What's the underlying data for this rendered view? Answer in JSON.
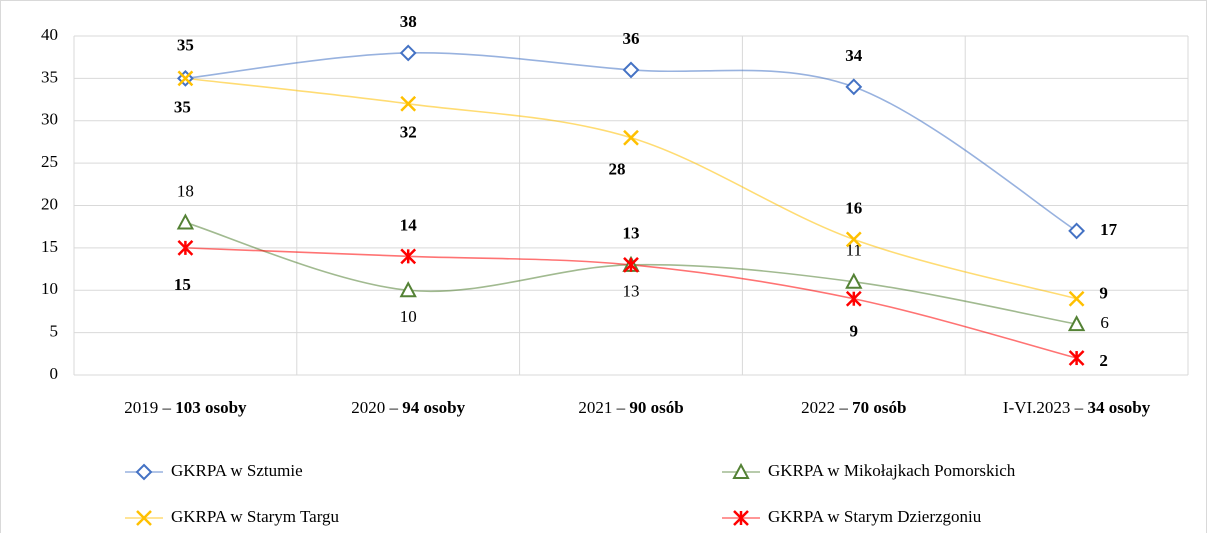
{
  "chart_data": {
    "type": "line",
    "categories": [
      "2019 – 103 osoby",
      "2020 – 94 osoby",
      "2021 – 90 osób",
      "2022 – 70 osób",
      "I-VI.2023 – 34 osoby"
    ],
    "series": [
      {
        "name": "GKRPA w Sztumie",
        "color": "#4472c4",
        "marker": "diamond",
        "values": [
          35,
          38,
          36,
          34,
          17
        ]
      },
      {
        "name": "GKRPA w Mikołajkach Pomorskich",
        "color": "#548235",
        "marker": "triangle",
        "values": [
          18,
          10,
          13,
          11,
          6
        ]
      },
      {
        "name": "GKRPA w Starym Targu",
        "color": "#ffc000",
        "marker": "x",
        "values": [
          35,
          32,
          28,
          16,
          9
        ]
      },
      {
        "name": "GKRPA w Starym Dzierzgoniu",
        "color": "#ff0000",
        "marker": "star",
        "values": [
          15,
          14,
          13,
          9,
          2
        ]
      }
    ],
    "ylim": [
      0,
      40
    ],
    "yticks": [
      0,
      5,
      10,
      15,
      20,
      25,
      30,
      35,
      40
    ],
    "grid": true,
    "legend": "bottom"
  }
}
